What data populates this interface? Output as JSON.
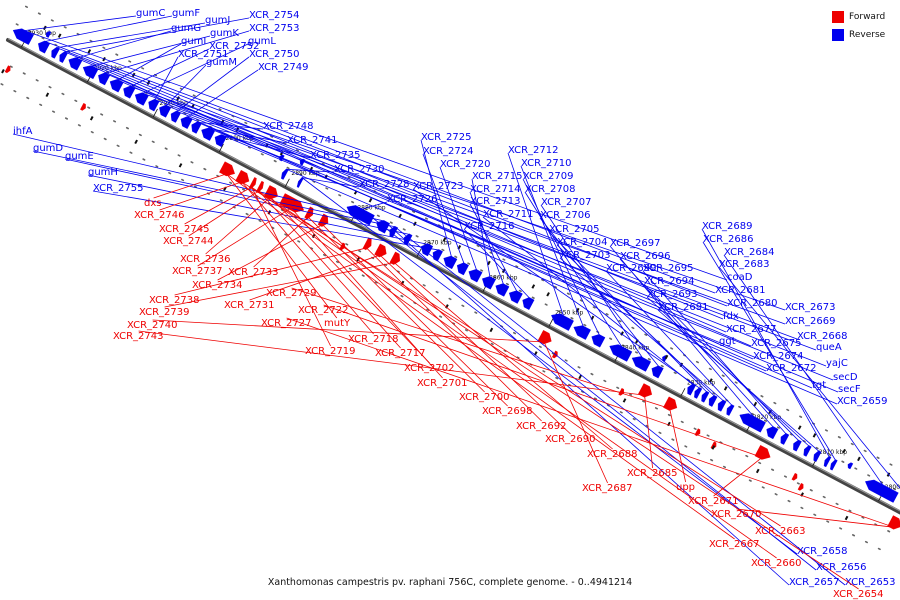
{
  "caption": "Xanthomonas campestris pv. raphani 756C, complete genome. - 0..4941214",
  "legend": {
    "forward": {
      "label": "Forward",
      "color": "#ee0000"
    },
    "reverse": {
      "label": "Reverse",
      "color": "#0000ee"
    }
  },
  "colors": {
    "forward": "#ee0000",
    "reverse": "#0000ee",
    "backbone": "#444444",
    "tick": "#111111"
  },
  "kbp_labels": [
    "2930 kbp",
    "2920 kbp",
    "2910 kbp",
    "2900 kbp",
    "2890 kbp",
    "2880 kbp",
    "2870 kbp",
    "2860 kbp",
    "2850 kbp",
    "2840 kbp",
    "2830 kbp",
    "2820 kbp",
    "2810 kbp",
    "2800 kbp"
  ],
  "reverse_genes": [
    "gumC",
    "gumF",
    "gumJ",
    "XCR_2754",
    "gumG",
    "gumK",
    "XCR_2753",
    "gumI",
    "XCR_2752",
    "gumL",
    "XCR_2751",
    "gumM",
    "XCR_2750",
    "XCR_2749",
    "XCR_2748",
    "XCR_2741",
    "XCR_2735",
    "XCR_2730",
    "XCR_2728",
    "XCR_2726",
    "ihfA",
    "gumD",
    "gumE",
    "gumH",
    "XCR_2755",
    "XCR_2725",
    "XCR_2724",
    "XCR_2720",
    "XCR_2715",
    "XCR_2714",
    "XCR_2713",
    "XCR_2716",
    "XCR_2712",
    "XCR_2710",
    "XCR_2709",
    "XCR_2708",
    "XCR_2707",
    "XCR_2706",
    "XCR_2711",
    "XCR_2723",
    "XCR_2705",
    "XCR_2704",
    "XCR_2703",
    "XCR_2699",
    "XCR_2697",
    "XCR_2696",
    "XCR_2695",
    "XCR_2694",
    "XCR_2693",
    "XCR_2691",
    "XCR_2689",
    "XCR_2686",
    "XCR_2684",
    "XCR_2683",
    "coaD",
    "XCR_2681",
    "XCR_2680",
    "fdx",
    "XCR_2677",
    "ggt",
    "XCR_2675",
    "XCR_2674",
    "XCR_2673",
    "XCR_2669",
    "XCR_2668",
    "queA",
    "yajC",
    "XCR_2672",
    "tgt",
    "secD",
    "secF",
    "XCR_2659",
    "XCR_2658",
    "XCR_2656",
    "XCR_2657",
    "XCR_2653"
  ],
  "forward_genes": [
    "dxs",
    "XCR_2746",
    "XCR_2745",
    "XCR_2744",
    "XCR_2736",
    "XCR_2737",
    "XCR_2733",
    "XCR_2734",
    "XCR_2738",
    "XCR_2731",
    "XCR_2739",
    "XCR_2740",
    "XCR_2743",
    "XCR_2729",
    "XCR_2722",
    "XCR_2727",
    "mutY",
    "XCR_2718",
    "XCR_2719",
    "XCR_2717",
    "XCR_2702",
    "XCR_2701",
    "XCR_2700",
    "XCR_2698",
    "XCR_2692",
    "XCR_2690",
    "XCR_2688",
    "XCR_2687",
    "XCR_2685",
    "upp",
    "XCR_2671",
    "XCR_2670",
    "XCR_2667",
    "XCR_2663",
    "XCR_2660",
    "XCR_2654"
  ]
}
